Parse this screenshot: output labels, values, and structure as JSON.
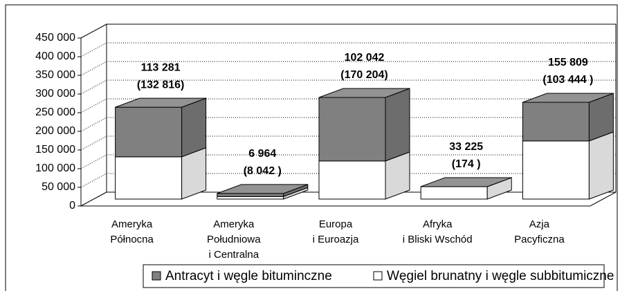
{
  "chart_data": {
    "type": "bar3d_stacked",
    "categories": [
      [
        "Ameryka",
        "Północna"
      ],
      [
        "Ameryka",
        "Południowa",
        "i Centralna"
      ],
      [
        "Europa",
        "i Euroazja"
      ],
      [
        "Afryka",
        "i Bliski Wschód"
      ],
      [
        "Azja",
        "Pacyficzna"
      ]
    ],
    "series": [
      {
        "name": "Węgiel brunatny i węgle subbitumiczne",
        "color": "#ffffff",
        "values": [
          113281,
          6964,
          102042,
          33225,
          155809
        ],
        "value_labels": [
          "113 281",
          "6 964",
          "102 042",
          "33 225",
          "155 809"
        ]
      },
      {
        "name": "Antracyt i węgle bituminczne",
        "color": "#808080",
        "values": [
          132816,
          8042,
          170204,
          174,
          103444
        ],
        "value_labels": [
          "(132 816)",
          "(8 042 )",
          "(170 204)",
          "(174 )",
          "(103 444 )"
        ]
      }
    ],
    "ylim": [
      0,
      450000
    ],
    "yticks": [
      0,
      {
        "value": 50000,
        "label": "50 000"
      },
      {
        "value": 100000,
        "label": "100 000"
      },
      {
        "value": 150000,
        "label": "150 000"
      },
      {
        "value": 200000,
        "label": "200 000"
      },
      {
        "value": 250000,
        "label": "250 000"
      },
      {
        "value": 300000,
        "label": "300 000"
      },
      {
        "value": 350000,
        "label": "350 000"
      },
      {
        "value": 400000,
        "label": "400 000"
      },
      {
        "value": 450000,
        "label": "450 000"
      }
    ],
    "grid": true,
    "legend": "bottom"
  }
}
